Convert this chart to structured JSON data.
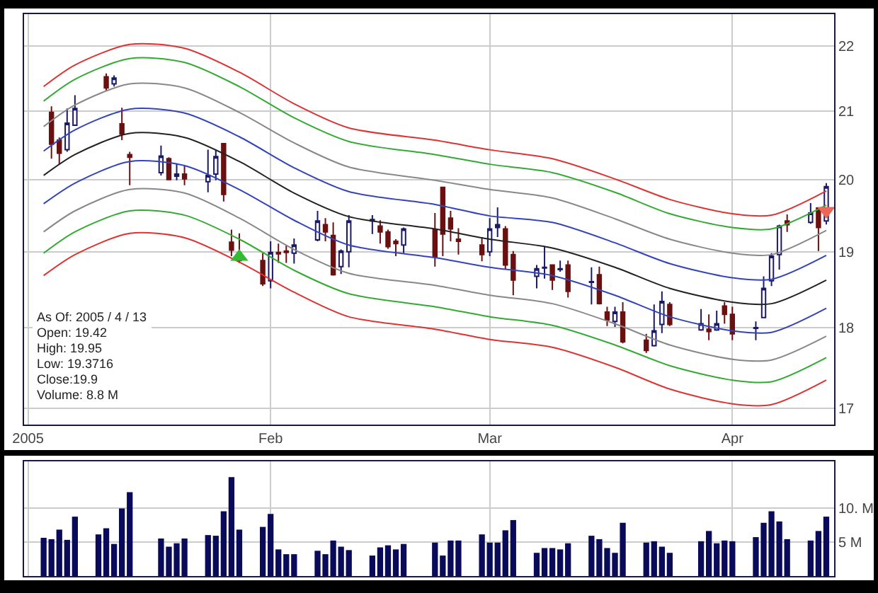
{
  "chart_data": [
    {
      "type": "candlestick",
      "annotations": [
        "As Of: 2005 / 4 / 13",
        "Open: 19.42",
        "High: 19.95",
        "Low: 19.3716",
        "Close:19.9",
        "Volume: 8.8 M"
      ],
      "x": [
        "2005-01-04",
        "2005-01-05",
        "2005-01-06",
        "2005-01-07",
        "2005-01-11",
        "2005-01-12",
        "2005-01-13",
        "2005-01-14",
        "2005-01-18",
        "2005-01-19",
        "2005-01-20",
        "2005-01-21",
        "2005-01-24",
        "2005-01-25",
        "2005-01-26",
        "2005-01-27",
        "2005-01-28",
        "2005-01-31",
        "2005-02-01",
        "2005-02-02",
        "2005-02-03",
        "2005-02-04",
        "2005-02-07",
        "2005-02-08",
        "2005-02-09",
        "2005-02-10",
        "2005-02-11",
        "2005-02-14",
        "2005-02-15",
        "2005-02-16",
        "2005-02-17",
        "2005-02-18",
        "2005-02-22",
        "2005-02-23",
        "2005-02-24",
        "2005-02-25",
        "2005-02-28",
        "2005-03-01",
        "2005-03-02",
        "2005-03-03",
        "2005-03-04",
        "2005-03-07",
        "2005-03-08",
        "2005-03-09",
        "2005-03-10",
        "2005-03-11",
        "2005-03-14",
        "2005-03-15",
        "2005-03-16",
        "2005-03-17",
        "2005-03-18",
        "2005-03-21",
        "2005-03-22",
        "2005-03-23",
        "2005-03-24",
        "2005-03-28",
        "2005-03-29",
        "2005-03-30",
        "2005-03-31",
        "2005-04-01",
        "2005-04-04",
        "2005-04-05",
        "2005-04-06",
        "2005-04-07",
        "2005-04-08",
        "2005-04-11",
        "2005-04-12",
        "2005-04-13"
      ],
      "ohlc": [
        [
          20.98,
          21.07,
          20.3,
          20.51
        ],
        [
          20.57,
          20.61,
          20.22,
          20.38
        ],
        [
          20.43,
          21.04,
          20.4,
          20.82
        ],
        [
          20.79,
          21.24,
          20.78,
          21.04
        ],
        [
          21.52,
          21.57,
          21.3,
          21.35
        ],
        [
          21.41,
          21.54,
          21.37,
          21.5
        ],
        [
          20.81,
          21.05,
          20.57,
          20.66
        ],
        [
          20.36,
          20.4,
          19.92,
          20.32
        ],
        [
          20.1,
          20.49,
          20.06,
          20.34
        ],
        [
          20.3,
          20.32,
          19.99,
          20.0
        ],
        [
          20.08,
          20.23,
          19.99,
          20.05
        ],
        [
          20.08,
          20.19,
          19.92,
          20.01
        ],
        [
          19.97,
          20.43,
          19.82,
          20.06
        ],
        [
          20.08,
          20.43,
          19.99,
          20.33
        ],
        [
          20.52,
          20.53,
          19.69,
          19.79
        ],
        [
          19.13,
          19.3,
          18.94,
          19.02
        ],
        [
          18.98,
          19.25,
          18.85,
          18.88
        ],
        [
          18.88,
          18.98,
          18.54,
          18.57
        ],
        [
          18.61,
          19.14,
          18.51,
          18.99
        ],
        [
          18.99,
          19.11,
          18.85,
          18.97
        ],
        [
          19.01,
          19.09,
          18.85,
          18.99
        ],
        [
          18.98,
          19.18,
          18.84,
          19.09
        ],
        [
          19.16,
          19.56,
          19.14,
          19.42
        ],
        [
          19.37,
          19.46,
          19.14,
          19.27
        ],
        [
          19.22,
          19.4,
          18.68,
          18.69
        ],
        [
          18.8,
          19.03,
          18.7,
          19.01
        ],
        [
          19.0,
          19.5,
          18.79,
          19.42
        ],
        [
          19.42,
          19.5,
          19.24,
          19.44
        ],
        [
          19.35,
          19.43,
          19.11,
          19.27
        ],
        [
          19.27,
          19.3,
          19.04,
          19.07
        ],
        [
          19.14,
          19.17,
          18.94,
          19.11
        ],
        [
          19.09,
          19.33,
          18.98,
          19.31
        ],
        [
          19.3,
          19.53,
          18.8,
          18.93
        ],
        [
          19.89,
          19.9,
          18.94,
          19.24
        ],
        [
          19.46,
          19.56,
          19.14,
          19.31
        ],
        [
          19.17,
          19.32,
          18.96,
          19.14
        ],
        [
          19.09,
          19.2,
          18.87,
          18.96
        ],
        [
          19.0,
          19.46,
          18.94,
          19.31
        ],
        [
          19.33,
          19.61,
          19.2,
          19.37
        ],
        [
          19.31,
          19.35,
          18.76,
          18.82
        ],
        [
          18.96,
          19.01,
          18.42,
          18.62
        ],
        [
          18.67,
          18.82,
          18.51,
          18.77
        ],
        [
          18.78,
          19.07,
          18.64,
          18.79
        ],
        [
          18.82,
          18.83,
          18.49,
          18.62
        ],
        [
          18.76,
          18.88,
          18.73,
          18.77
        ],
        [
          18.82,
          18.88,
          18.39,
          18.47
        ],
        [
          18.59,
          18.79,
          18.3,
          18.6
        ],
        [
          18.69,
          18.8,
          18.3,
          18.31
        ],
        [
          18.2,
          18.27,
          18.02,
          18.1
        ],
        [
          18.08,
          18.27,
          18.01,
          18.2
        ],
        [
          18.2,
          18.33,
          17.8,
          17.82
        ],
        [
          17.84,
          17.92,
          17.68,
          17.71
        ],
        [
          17.77,
          18.3,
          17.76,
          17.96
        ],
        [
          18.04,
          18.47,
          17.93,
          18.34
        ],
        [
          18.3,
          18.33,
          18.02,
          18.04
        ],
        [
          17.97,
          18.24,
          17.96,
          18.05
        ],
        [
          17.98,
          18.17,
          17.84,
          17.95
        ],
        [
          17.97,
          18.22,
          17.96,
          18.05
        ],
        [
          18.28,
          18.33,
          18.05,
          18.17
        ],
        [
          18.17,
          18.27,
          17.84,
          17.92
        ],
        [
          17.99,
          18.08,
          17.84,
          18.0
        ],
        [
          18.13,
          18.67,
          18.12,
          18.51
        ],
        [
          18.61,
          18.98,
          18.54,
          18.94
        ],
        [
          18.96,
          19.37,
          18.76,
          19.35
        ],
        [
          19.42,
          19.51,
          19.27,
          19.37
        ],
        [
          19.4,
          19.67,
          19.38,
          19.53
        ],
        [
          19.6,
          19.61,
          19.01,
          19.33
        ],
        [
          19.42,
          19.95,
          19.3716,
          19.9
        ]
      ],
      "colors": [
        "#6b1010",
        "#6b1010",
        "#1a1a66",
        "#1a1a66",
        "#6b1010",
        "#1a1a66",
        "#6b1010",
        "#6b1010",
        "#1a1a66",
        "#6b1010",
        "#1a1a66",
        "#6b1010",
        "#1a1a66",
        "#1a1a66",
        "#6b1010",
        "#6b1010",
        "#6b1010",
        "#6b1010",
        "#1a1a66",
        "#6b1010",
        "#6b1010",
        "#1a1a66",
        "#1a1a66",
        "#6b1010",
        "#6b1010",
        "#1a1a66",
        "#1a1a66",
        "#1a1a66",
        "#6b1010",
        "#6b1010",
        "#6b1010",
        "#1a1a66",
        "#6b1010",
        "#6b1010",
        "#6b1010",
        "#6b1010",
        "#6b1010",
        "#1a1a66",
        "#1a1a66",
        "#6b1010",
        "#6b1010",
        "#1a1a66",
        "#1a1a66",
        "#6b1010",
        "#1a1a66",
        "#6b1010",
        "#1a1a66",
        "#6b1010",
        "#6b1010",
        "#1a1a66",
        "#6b1010",
        "#6b1010",
        "#1a1a66",
        "#1a1a66",
        "#6b1010",
        "#1a1a66",
        "#6b1010",
        "#1a1a66",
        "#6b1010",
        "#6b1010",
        "#1a1a66",
        "#1a1a66",
        "#1a1a66",
        "#1a1a66",
        "#6b1010",
        "#1a1a66",
        "#6b1010",
        "#1a1a66"
      ],
      "series": [
        {
          "type": "line",
          "color": "#dd3333",
          "x": [
            "2005-01-03",
            "2005-01-07",
            "2005-01-14",
            "2005-01-21",
            "2005-01-28",
            "2005-02-04",
            "2005-02-11",
            "2005-02-22",
            "2005-03-01",
            "2005-03-09",
            "2005-03-17",
            "2005-03-24",
            "2005-04-01",
            "2005-04-06",
            "2005-04-13"
          ],
          "values": [
            21.37,
            21.7,
            22.02,
            21.96,
            21.59,
            21.11,
            20.75,
            20.57,
            20.43,
            20.3,
            20.01,
            19.72,
            19.52,
            19.5,
            19.84
          ]
        },
        {
          "type": "line",
          "color": "#33aa33",
          "x": [
            "2005-01-03",
            "2005-01-07",
            "2005-01-14",
            "2005-01-21",
            "2005-01-28",
            "2005-02-04",
            "2005-02-11",
            "2005-02-22",
            "2005-03-01",
            "2005-03-09",
            "2005-03-17",
            "2005-03-24",
            "2005-04-01",
            "2005-04-06",
            "2005-04-13"
          ],
          "values": [
            21.15,
            21.48,
            21.8,
            21.74,
            21.37,
            20.9,
            20.55,
            20.36,
            20.22,
            20.1,
            19.82,
            19.52,
            19.33,
            19.31,
            19.64
          ]
        },
        {
          "type": "line",
          "color": "#888888",
          "x": [
            "2005-01-03",
            "2005-01-07",
            "2005-01-14",
            "2005-01-21",
            "2005-01-28",
            "2005-02-04",
            "2005-02-11",
            "2005-02-22",
            "2005-03-01",
            "2005-03-09",
            "2005-03-17",
            "2005-03-24",
            "2005-04-01",
            "2005-04-06",
            "2005-04-13"
          ],
          "values": [
            20.77,
            21.09,
            21.41,
            21.35,
            20.98,
            20.53,
            20.18,
            19.99,
            19.86,
            19.74,
            19.45,
            19.17,
            18.98,
            18.96,
            19.29
          ]
        },
        {
          "type": "line",
          "color": "#3344bb",
          "x": [
            "2005-01-03",
            "2005-01-07",
            "2005-01-14",
            "2005-01-21",
            "2005-01-28",
            "2005-02-04",
            "2005-02-11",
            "2005-02-22",
            "2005-03-01",
            "2005-03-09",
            "2005-03-17",
            "2005-03-24",
            "2005-04-01",
            "2005-04-06",
            "2005-04-13"
          ],
          "values": [
            20.41,
            20.72,
            21.03,
            20.97,
            20.62,
            20.17,
            19.83,
            19.65,
            19.49,
            19.4,
            19.12,
            18.84,
            18.65,
            18.63,
            18.95
          ]
        },
        {
          "type": "line",
          "color": "#222222",
          "x": [
            "2005-01-03",
            "2005-01-07",
            "2005-01-14",
            "2005-01-21",
            "2005-01-28",
            "2005-02-04",
            "2005-02-11",
            "2005-02-22",
            "2005-03-01",
            "2005-03-09",
            "2005-03-17",
            "2005-03-24",
            "2005-04-01",
            "2005-04-06",
            "2005-04-13"
          ],
          "values": [
            20.06,
            20.36,
            20.67,
            20.61,
            20.26,
            19.81,
            19.48,
            19.31,
            19.17,
            19.05,
            18.79,
            18.51,
            18.33,
            18.31,
            18.62
          ]
        },
        {
          "type": "line",
          "color": "#3344bb",
          "x": [
            "2005-01-03",
            "2005-01-07",
            "2005-01-14",
            "2005-01-21",
            "2005-01-28",
            "2005-02-04",
            "2005-02-11",
            "2005-02-22",
            "2005-03-01",
            "2005-03-09",
            "2005-03-17",
            "2005-03-24",
            "2005-04-01",
            "2005-04-06",
            "2005-04-13"
          ],
          "values": [
            19.66,
            19.95,
            20.26,
            20.2,
            19.86,
            19.43,
            19.09,
            18.92,
            18.79,
            18.68,
            18.42,
            18.14,
            17.96,
            17.94,
            18.25
          ]
        },
        {
          "type": "line",
          "color": "#888888",
          "x": [
            "2005-01-03",
            "2005-01-07",
            "2005-01-14",
            "2005-01-21",
            "2005-01-28",
            "2005-02-04",
            "2005-02-11",
            "2005-02-22",
            "2005-03-01",
            "2005-03-09",
            "2005-03-17",
            "2005-03-24",
            "2005-04-01",
            "2005-04-06",
            "2005-04-13"
          ],
          "values": [
            19.27,
            19.56,
            19.86,
            19.81,
            19.46,
            19.03,
            18.71,
            18.55,
            18.42,
            18.31,
            18.05,
            17.78,
            17.6,
            17.59,
            17.89
          ]
        },
        {
          "type": "line",
          "color": "#33aa33",
          "x": [
            "2005-01-03",
            "2005-01-07",
            "2005-01-14",
            "2005-01-21",
            "2005-01-28",
            "2005-02-04",
            "2005-02-11",
            "2005-02-22",
            "2005-03-01",
            "2005-03-09",
            "2005-03-17",
            "2005-03-24",
            "2005-04-01",
            "2005-04-06",
            "2005-04-13"
          ],
          "values": [
            18.98,
            19.27,
            19.56,
            19.5,
            19.17,
            18.75,
            18.44,
            18.27,
            18.14,
            18.03,
            17.78,
            17.52,
            17.34,
            17.32,
            17.62
          ]
        },
        {
          "type": "line",
          "color": "#dd3333",
          "x": [
            "2005-01-03",
            "2005-01-07",
            "2005-01-14",
            "2005-01-21",
            "2005-01-28",
            "2005-02-04",
            "2005-02-11",
            "2005-02-22",
            "2005-03-01",
            "2005-03-09",
            "2005-03-17",
            "2005-03-24",
            "2005-04-01",
            "2005-04-06",
            "2005-04-13"
          ],
          "values": [
            18.68,
            18.96,
            19.25,
            19.19,
            18.86,
            18.46,
            18.14,
            17.98,
            17.85,
            17.75,
            17.5,
            17.23,
            17.05,
            17.04,
            17.34
          ]
        },
        {
          "type": "scatter",
          "marker": "triangle",
          "color": "#33bb33",
          "x": [
            "2005-01-28"
          ],
          "values": [
            18.93
          ]
        },
        {
          "type": "scatter",
          "marker": "triangle-down",
          "color": "#ee6655",
          "x": [
            "2005-04-13"
          ],
          "values": [
            19.56
          ]
        }
      ],
      "xlim": [
        "2004-12-31T12:00",
        "2005-04-14"
      ],
      "xticks": [
        {
          "value": "2005-01-01",
          "label": "2005"
        },
        {
          "value": "2005-02-01",
          "label": "Feb"
        },
        {
          "value": "2005-03-01",
          "label": "Mar"
        },
        {
          "value": "2005-04-01",
          "label": "Apr"
        }
      ],
      "ylim": [
        16.8,
        22.5
      ],
      "yticks": [
        17,
        18,
        19,
        20,
        21,
        22
      ],
      "log": "y",
      "grid": true
    },
    {
      "type": "bar",
      "color": "#0a0a5a",
      "x": [
        "2005-01-03",
        "2005-01-04",
        "2005-01-05",
        "2005-01-06",
        "2005-01-07",
        "2005-01-10",
        "2005-01-11",
        "2005-01-12",
        "2005-01-13",
        "2005-01-14",
        "2005-01-18",
        "2005-01-19",
        "2005-01-20",
        "2005-01-21",
        "2005-01-24",
        "2005-01-25",
        "2005-01-26",
        "2005-01-27",
        "2005-01-28",
        "2005-01-31",
        "2005-02-01",
        "2005-02-02",
        "2005-02-03",
        "2005-02-04",
        "2005-02-07",
        "2005-02-08",
        "2005-02-09",
        "2005-02-10",
        "2005-02-11",
        "2005-02-14",
        "2005-02-15",
        "2005-02-16",
        "2005-02-17",
        "2005-02-18",
        "2005-02-22",
        "2005-02-23",
        "2005-02-24",
        "2005-02-25",
        "2005-02-28",
        "2005-03-01",
        "2005-03-02",
        "2005-03-03",
        "2005-03-04",
        "2005-03-07",
        "2005-03-08",
        "2005-03-09",
        "2005-03-10",
        "2005-03-11",
        "2005-03-14",
        "2005-03-15",
        "2005-03-16",
        "2005-03-17",
        "2005-03-18",
        "2005-03-21",
        "2005-03-22",
        "2005-03-23",
        "2005-03-24",
        "2005-03-28",
        "2005-03-29",
        "2005-03-30",
        "2005-03-31",
        "2005-04-01",
        "2005-04-04",
        "2005-04-05",
        "2005-04-06",
        "2005-04-07",
        "2005-04-08",
        "2005-04-11",
        "2005-04-12",
        "2005-04-13"
      ],
      "values": [
        5.6,
        5.4,
        6.8,
        5.3,
        8.7,
        6.1,
        7.0,
        4.7,
        9.9,
        12.3,
        5.5,
        4.3,
        4.8,
        5.5,
        6.0,
        5.9,
        9.5,
        14.5,
        6.8,
        7.2,
        9.1,
        3.9,
        3.2,
        3.2,
        3.7,
        3.2,
        5.2,
        4.3,
        3.8,
        3.0,
        4.2,
        4.5,
        3.9,
        4.7,
        4.9,
        3.0,
        5.2,
        5.2,
        6.1,
        4.9,
        4.9,
        6.7,
        8.2,
        3.4,
        4.1,
        4.1,
        3.9,
        4.8,
        5.9,
        5.4,
        4.1,
        3.4,
        7.8,
        4.9,
        5.1,
        4.3,
        3.4,
        5.1,
        6.6,
        4.8,
        5.2,
        5.1,
        5.7,
        7.8,
        9.5,
        8.0,
        5.4,
        5.2,
        6.6,
        8.7
      ],
      "xlim": [
        "2004-12-31T12:00",
        "2005-04-14"
      ],
      "xticks": [
        {
          "value": "2005-01-01",
          "label": null
        },
        {
          "value": "2005-02-01",
          "label": null
        },
        {
          "value": "2005-03-01",
          "label": null
        },
        {
          "value": "2005-04-01",
          "label": null
        }
      ],
      "ylim": [
        0,
        16.8
      ],
      "yticks": [
        {
          "value": 5,
          "label": "5 M"
        },
        {
          "value": 10,
          "label": "10. M"
        }
      ],
      "grid": true,
      "tick_labels": "y"
    }
  ]
}
